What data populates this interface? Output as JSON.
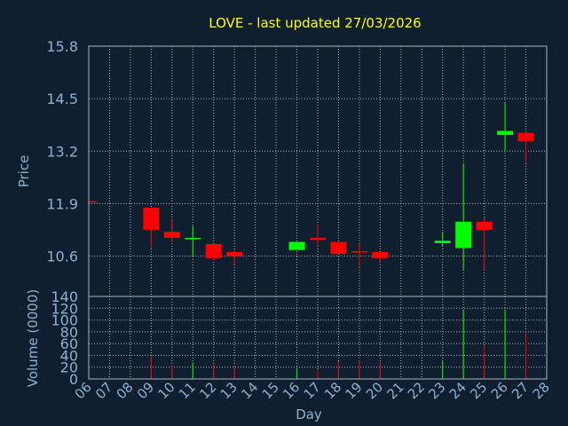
{
  "chart_data": {
    "type": "candlestick",
    "title": "LOVE - last updated 27/03/2026",
    "xlabel": "Day",
    "price_panel": {
      "ylabel": "Price",
      "ylim": [
        9.6,
        15.8
      ],
      "yticks": [
        "15.8",
        "14.5",
        "13.2",
        "11.9",
        "10.6"
      ],
      "ytick_values": [
        15.8,
        14.5,
        13.2,
        11.9,
        10.6
      ]
    },
    "volume_panel": {
      "ylabel": "Volume (0000)",
      "ylim": [
        0,
        140
      ],
      "yticks": [
        "140",
        "120",
        "100",
        "80",
        "60",
        "40",
        "20",
        "0"
      ],
      "ytick_values": [
        140,
        120,
        100,
        80,
        60,
        40,
        20,
        0
      ]
    },
    "x_ticks": [
      "06",
      "07",
      "08",
      "09",
      "10",
      "11",
      "12",
      "13",
      "14",
      "15",
      "16",
      "17",
      "18",
      "19",
      "20",
      "21",
      "22",
      "23",
      "24",
      "25",
      "26",
      "27",
      "28"
    ],
    "candles": [
      {
        "day": "06",
        "open": 11.96,
        "high": 11.96,
        "low": 11.93,
        "close": 11.93,
        "volume": 0
      },
      {
        "day": "09",
        "open": 11.8,
        "high": 11.8,
        "low": 10.8,
        "close": 11.25,
        "volume": 38
      },
      {
        "day": "10",
        "open": 11.2,
        "high": 11.5,
        "low": 10.95,
        "close": 11.05,
        "volume": 22
      },
      {
        "day": "11",
        "open": 11.05,
        "high": 11.35,
        "low": 10.6,
        "close": 11.05,
        "volume": 28
      },
      {
        "day": "12",
        "open": 10.9,
        "high": 10.9,
        "low": 10.5,
        "close": 10.55,
        "volume": 25
      },
      {
        "day": "13",
        "open": 10.7,
        "high": 10.75,
        "low": 10.4,
        "close": 10.6,
        "volume": 22
      },
      {
        "day": "16",
        "open": 10.75,
        "high": 10.95,
        "low": 10.75,
        "close": 10.95,
        "volume": 18
      },
      {
        "day": "17",
        "open": 11.05,
        "high": 11.4,
        "low": 10.85,
        "close": 11.0,
        "volume": 16
      },
      {
        "day": "18",
        "open": 10.95,
        "high": 10.95,
        "low": 10.65,
        "close": 10.65,
        "volume": 30
      },
      {
        "day": "19",
        "open": 10.72,
        "high": 10.9,
        "low": 10.35,
        "close": 10.7,
        "volume": 32
      },
      {
        "day": "20",
        "open": 10.7,
        "high": 10.7,
        "low": 10.45,
        "close": 10.55,
        "volume": 28
      },
      {
        "day": "23",
        "open": 10.92,
        "high": 11.2,
        "low": 10.85,
        "close": 10.98,
        "volume": 30
      },
      {
        "day": "24",
        "open": 10.8,
        "high": 12.9,
        "low": 10.25,
        "close": 11.45,
        "volume": 118
      },
      {
        "day": "25",
        "open": 11.45,
        "high": 11.55,
        "low": 10.25,
        "close": 11.25,
        "volume": 58
      },
      {
        "day": "26",
        "open": 13.6,
        "high": 14.4,
        "low": 13.2,
        "close": 13.7,
        "volume": 118
      },
      {
        "day": "27",
        "open": 13.65,
        "high": 13.65,
        "low": 12.9,
        "close": 13.45,
        "volume": 78
      }
    ]
  },
  "colors": {
    "background": "#0f1f2f",
    "title": "#ffff00",
    "axis_text": "#8fb0d0",
    "frame": "#aab4c0",
    "grid": "#aab4c0",
    "up": "#00ff00",
    "down": "#ff0000"
  }
}
